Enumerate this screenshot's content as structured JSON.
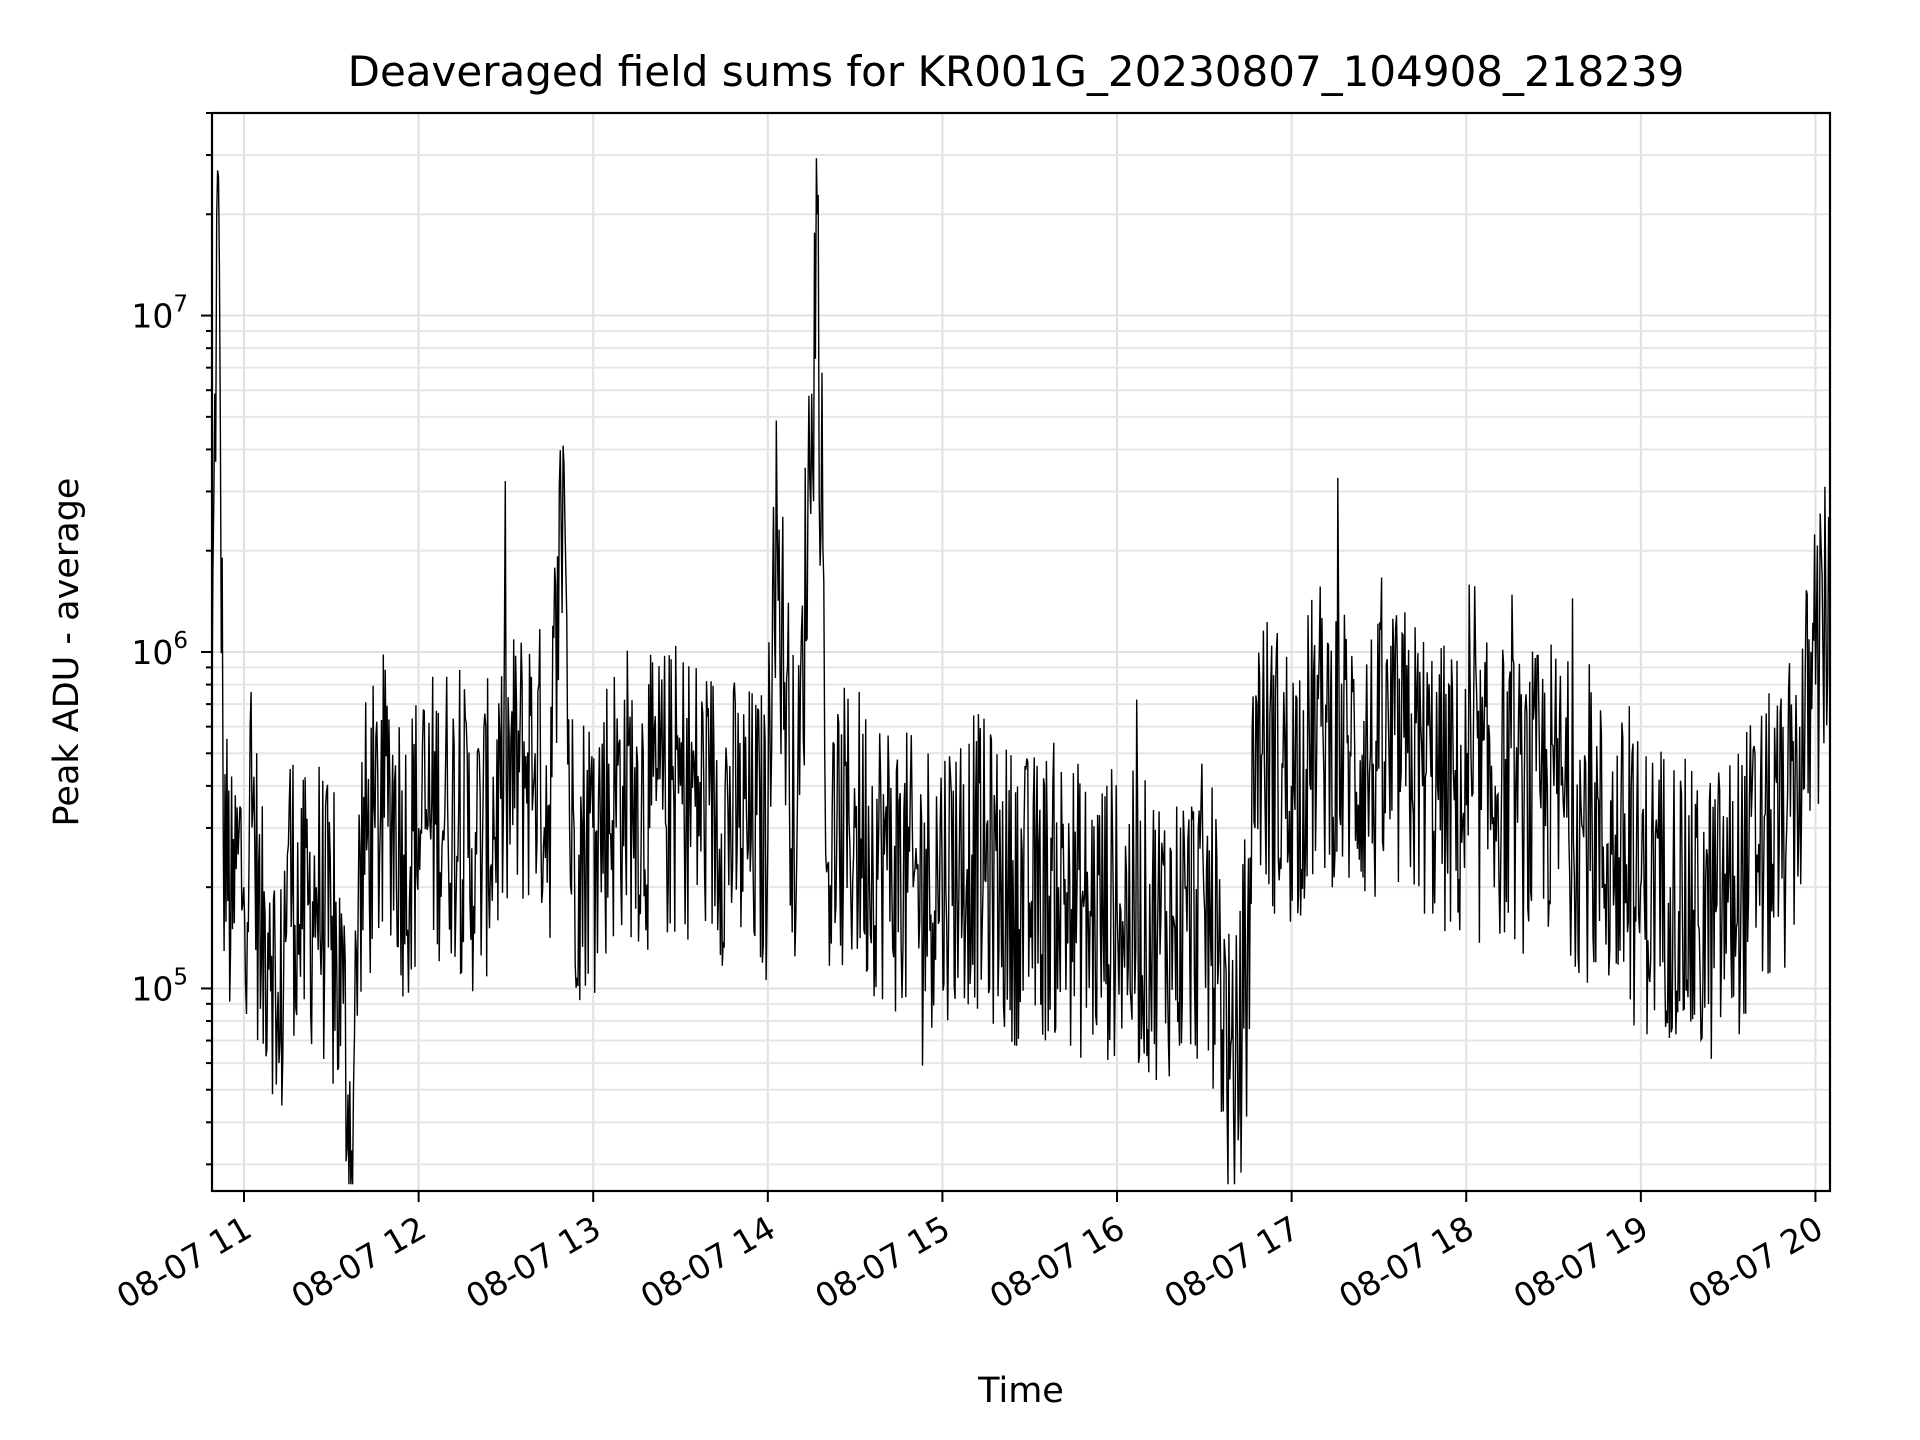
{
  "chart_data": {
    "type": "line",
    "title": "Deaveraged field sums for KR001G_20230807_104908_218239",
    "xlabel": "Time",
    "ylabel": "Peak ADU - average",
    "y_scale": "log",
    "x_range": [
      "2023-08-07 10:49",
      "2023-08-07 20:05"
    ],
    "ylim": [
      25000,
      40000000
    ],
    "x_ticks": [
      "08-07 11",
      "08-07 12",
      "08-07 13",
      "08-07 14",
      "08-07 15",
      "08-07 16",
      "08-07 17",
      "08-07 18",
      "08-07 19",
      "08-07 20"
    ],
    "y_ticks": [
      {
        "base": "10",
        "exp": "5",
        "value": 100000
      },
      {
        "base": "10",
        "exp": "6",
        "value": 1000000
      },
      {
        "base": "10",
        "exp": "7",
        "value": 10000000
      }
    ],
    "grid": true,
    "line_color": "#000000",
    "series": [
      {
        "x": [
          "2023-08-07 10:49",
          "2023-08-07 10:51",
          "2023-08-07 10:53",
          "2023-08-07 10:56",
          "2023-08-07 10:58",
          "2023-08-07 11:00",
          "2023-08-07 11:03",
          "2023-08-07 11:06",
          "2023-08-07 11:09",
          "2023-08-07 11:12",
          "2023-08-07 11:15",
          "2023-08-07 11:20",
          "2023-08-07 11:25",
          "2023-08-07 11:30",
          "2023-08-07 11:34",
          "2023-08-07 11:37",
          "2023-08-07 11:40",
          "2023-08-07 11:45",
          "2023-08-07 11:50",
          "2023-08-07 11:55",
          "2023-08-07 12:00",
          "2023-08-07 12:10",
          "2023-08-07 12:20",
          "2023-08-07 12:30",
          "2023-08-07 12:40",
          "2023-08-07 12:45",
          "2023-08-07 12:50",
          "2023-08-07 12:52",
          "2023-08-07 12:55",
          "2023-08-07 13:00",
          "2023-08-07 13:10",
          "2023-08-07 13:20",
          "2023-08-07 13:30",
          "2023-08-07 13:40",
          "2023-08-07 13:50",
          "2023-08-07 14:00",
          "2023-08-07 14:02",
          "2023-08-07 14:10",
          "2023-08-07 14:17",
          "2023-08-07 14:20",
          "2023-08-07 14:30",
          "2023-08-07 14:40",
          "2023-08-07 14:50",
          "2023-08-07 15:00",
          "2023-08-07 15:10",
          "2023-08-07 15:20",
          "2023-08-07 15:30",
          "2023-08-07 15:40",
          "2023-08-07 15:50",
          "2023-08-07 16:00",
          "2023-08-07 16:10",
          "2023-08-07 16:20",
          "2023-08-07 16:30",
          "2023-08-07 16:35",
          "2023-08-07 16:40",
          "2023-08-07 16:45",
          "2023-08-07 16:48",
          "2023-08-07 16:50",
          "2023-08-07 17:00",
          "2023-08-07 17:10",
          "2023-08-07 17:20",
          "2023-08-07 17:30",
          "2023-08-07 17:40",
          "2023-08-07 17:50",
          "2023-08-07 18:00",
          "2023-08-07 18:10",
          "2023-08-07 18:20",
          "2023-08-07 18:30",
          "2023-08-07 18:40",
          "2023-08-07 18:50",
          "2023-08-07 19:00",
          "2023-08-07 19:10",
          "2023-08-07 19:20",
          "2023-08-07 19:30",
          "2023-08-07 19:40",
          "2023-08-07 19:50",
          "2023-08-07 20:00",
          "2023-08-07 20:05"
        ],
        "values": [
          700000,
          27000000,
          300000,
          150000,
          250000,
          200000,
          350000,
          120000,
          180000,
          60000,
          250000,
          150000,
          200000,
          130000,
          90000,
          33000,
          250000,
          300000,
          400000,
          250000,
          300000,
          350000,
          250000,
          400000,
          500000,
          350000,
          3600000,
          300000,
          250000,
          300000,
          400000,
          350000,
          400000,
          350000,
          300000,
          280000,
          2700000,
          250000,
          20000000,
          250000,
          300000,
          250000,
          200000,
          220000,
          250000,
          200000,
          180000,
          200000,
          160000,
          170000,
          150000,
          150000,
          170000,
          120000,
          42000,
          140000,
          700000,
          500000,
          400000,
          600000,
          500000,
          450000,
          500000,
          400000,
          350000,
          400000,
          350000,
          400000,
          300000,
          250000,
          200000,
          200000,
          150000,
          180000,
          250000,
          300000,
          800000,
          1500000
        ]
      }
    ]
  }
}
